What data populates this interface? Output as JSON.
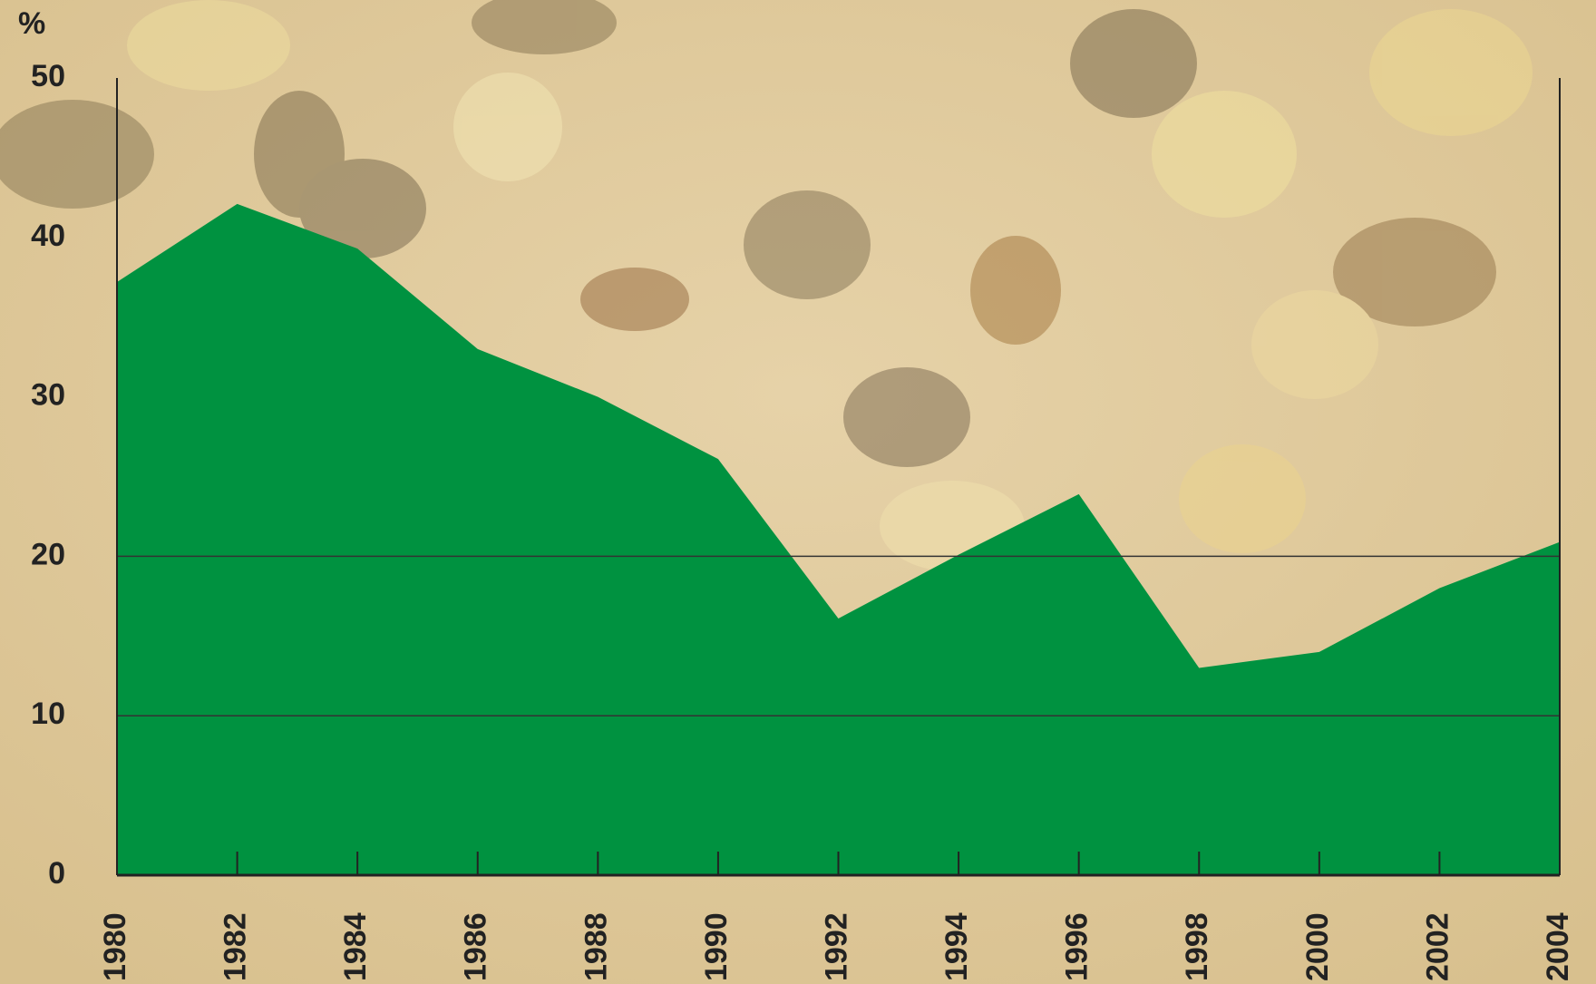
{
  "chart_data": {
    "type": "area",
    "y_label": "%",
    "x": [
      1980,
      1982,
      1984,
      1986,
      1988,
      1990,
      1992,
      1994,
      1996,
      1998,
      2000,
      2002,
      2004
    ],
    "values": [
      37.2,
      42.1,
      39.3,
      33.0,
      30.0,
      26.1,
      16.1,
      20.1,
      23.9,
      13.0,
      14.0,
      18.0,
      20.9
    ],
    "color": "#009240",
    "xlim": [
      1980,
      2004
    ],
    "xticks": [
      1980,
      1982,
      1984,
      1986,
      1988,
      1990,
      1992,
      1994,
      1996,
      1998,
      2000,
      2002,
      2004
    ],
    "ylim": [
      0,
      50
    ],
    "yticks": [
      0,
      10,
      20,
      30,
      40,
      50
    ],
    "grid_lines": [
      10,
      20
    ]
  }
}
